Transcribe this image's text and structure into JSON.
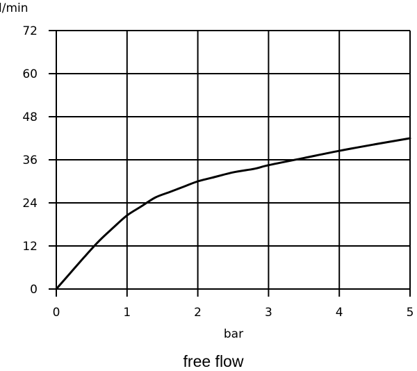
{
  "chart_data": {
    "type": "line",
    "ylabel": "l/min",
    "xlabel": "bar",
    "caption": "free flow",
    "xlim": [
      0,
      5
    ],
    "ylim": [
      0,
      72
    ],
    "xticks": [
      "0",
      "1",
      "2",
      "3",
      "4",
      "5"
    ],
    "yticks": [
      "0",
      "12",
      "24",
      "36",
      "48",
      "60",
      "72"
    ],
    "grid": true,
    "series": [
      {
        "x": [
          0,
          0.2,
          0.4,
          0.6,
          0.8,
          1.0,
          1.2,
          1.4,
          1.6,
          1.8,
          2.0,
          2.2,
          2.5,
          2.8,
          3.0,
          3.5,
          4.0,
          4.5,
          5.0
        ],
        "y": [
          0,
          4.5,
          9,
          13.3,
          17,
          20.5,
          23,
          25.5,
          27,
          28.5,
          30,
          31,
          32.5,
          33.5,
          34.5,
          36.5,
          38.5,
          40.3,
          42
        ]
      }
    ]
  }
}
